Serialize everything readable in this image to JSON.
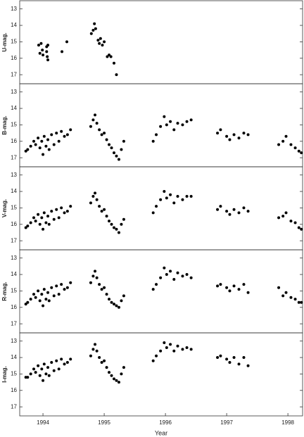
{
  "chart_data": [
    {
      "type": "scatter",
      "ylabel": "U-mag.",
      "marker_color": "#000000",
      "y_inverted": true,
      "x": [
        1993.93,
        1993.95,
        1993.97,
        1993.99,
        1994.0,
        1994.06,
        1994.06,
        1994.07,
        1994.08,
        1994.08,
        1994.31,
        1994.39,
        1994.79,
        1994.82,
        1994.84,
        1994.86,
        1994.9,
        1994.92,
        1994.94,
        1994.97,
        1995.0,
        1995.05,
        1995.08,
        1995.11,
        1995.16,
        1995.2
      ],
      "values": [
        15.2,
        15.7,
        15.1,
        15.5,
        15.8,
        15.3,
        15.6,
        15.9,
        16.1,
        15.2,
        15.6,
        15.0,
        14.5,
        14.3,
        13.9,
        14.2,
        14.9,
        15.1,
        14.8,
        15.2,
        15.0,
        15.9,
        15.8,
        15.9,
        16.3,
        17.0
      ],
      "xlim": [
        1993.62,
        1998.24
      ],
      "ylim": [
        12.5,
        17.55
      ],
      "yticks": [
        13,
        14,
        15,
        16,
        17
      ]
    },
    {
      "type": "scatter",
      "ylabel": "B-mag.",
      "marker_color": "#000000",
      "y_inverted": true,
      "x": [
        1993.72,
        1993.75,
        1993.8,
        1993.85,
        1993.88,
        1993.92,
        1993.95,
        1993.98,
        1994.0,
        1994.02,
        1994.05,
        1994.08,
        1994.1,
        1994.14,
        1994.18,
        1994.22,
        1994.26,
        1994.3,
        1994.35,
        1994.4,
        1994.45,
        1994.78,
        1994.82,
        1994.85,
        1994.88,
        1994.92,
        1994.96,
        1995.0,
        1995.04,
        1995.08,
        1995.12,
        1995.16,
        1995.2,
        1995.24,
        1995.28,
        1995.32,
        1995.8,
        1995.85,
        1995.92,
        1995.98,
        1996.02,
        1996.08,
        1996.14,
        1996.2,
        1996.28,
        1996.35,
        1996.42,
        1996.85,
        1996.9,
        1997.0,
        1997.05,
        1997.12,
        1997.2,
        1997.28,
        1997.35,
        1997.85,
        1997.92,
        1997.97,
        1998.05,
        1998.12,
        1998.18,
        1998.22
      ],
      "values": [
        16.6,
        16.5,
        16.3,
        16.0,
        16.2,
        15.8,
        16.4,
        16.0,
        16.8,
        15.7,
        16.3,
        15.9,
        16.5,
        15.6,
        16.2,
        15.5,
        16.0,
        15.4,
        15.7,
        15.6,
        15.3,
        15.1,
        14.7,
        14.4,
        14.9,
        15.3,
        15.6,
        15.5,
        15.9,
        16.2,
        16.4,
        16.7,
        16.9,
        17.1,
        16.5,
        16.0,
        16.0,
        15.6,
        15.1,
        14.5,
        15.0,
        14.8,
        15.3,
        14.9,
        15.0,
        14.8,
        14.7,
        15.5,
        15.3,
        15.7,
        15.9,
        15.6,
        15.8,
        15.5,
        15.6,
        16.2,
        16.0,
        15.7,
        16.2,
        16.4,
        16.6,
        16.7
      ],
      "xlim": [
        1993.62,
        1998.24
      ],
      "ylim": [
        12.5,
        17.55
      ],
      "yticks": [
        13,
        14,
        15,
        16,
        17
      ]
    },
    {
      "type": "scatter",
      "ylabel": "V-mag.",
      "marker_color": "#000000",
      "y_inverted": true,
      "x": [
        1993.72,
        1993.75,
        1993.8,
        1993.85,
        1993.88,
        1993.92,
        1993.95,
        1993.98,
        1994.0,
        1994.02,
        1994.05,
        1994.08,
        1994.1,
        1994.14,
        1994.18,
        1994.22,
        1994.26,
        1994.3,
        1994.35,
        1994.4,
        1994.45,
        1994.78,
        1994.82,
        1994.85,
        1994.88,
        1994.92,
        1994.96,
        1995.0,
        1995.04,
        1995.08,
        1995.12,
        1995.16,
        1995.2,
        1995.24,
        1995.28,
        1995.32,
        1995.8,
        1995.85,
        1995.92,
        1995.98,
        1996.02,
        1996.08,
        1996.14,
        1996.2,
        1996.28,
        1996.35,
        1996.42,
        1996.85,
        1996.9,
        1997.0,
        1997.05,
        1997.12,
        1997.2,
        1997.28,
        1997.35,
        1997.85,
        1997.92,
        1997.97,
        1998.05,
        1998.12,
        1998.18,
        1998.22
      ],
      "values": [
        16.2,
        16.1,
        15.9,
        15.6,
        15.8,
        15.4,
        16.0,
        15.6,
        16.3,
        15.3,
        15.9,
        15.5,
        16.0,
        15.2,
        15.7,
        15.1,
        15.6,
        15.0,
        15.3,
        15.2,
        14.9,
        14.7,
        14.3,
        14.1,
        14.5,
        14.9,
        15.2,
        15.1,
        15.5,
        15.8,
        16.0,
        16.2,
        16.3,
        16.5,
        16.0,
        15.7,
        15.3,
        14.9,
        14.5,
        14.0,
        14.4,
        14.2,
        14.7,
        14.3,
        14.5,
        14.3,
        14.3,
        15.1,
        14.9,
        15.2,
        15.4,
        15.1,
        15.3,
        15.0,
        15.2,
        15.6,
        15.5,
        15.3,
        15.8,
        15.9,
        16.2,
        16.3
      ],
      "xlim": [
        1993.62,
        1998.24
      ],
      "ylim": [
        12.5,
        17.55
      ],
      "yticks": [
        13,
        14,
        15,
        16,
        17
      ]
    },
    {
      "type": "scatter",
      "ylabel": "R-mag.",
      "marker_color": "#000000",
      "y_inverted": true,
      "x": [
        1993.72,
        1993.75,
        1993.8,
        1993.85,
        1993.88,
        1993.92,
        1993.95,
        1993.98,
        1994.0,
        1994.02,
        1994.05,
        1994.08,
        1994.1,
        1994.14,
        1994.18,
        1994.22,
        1994.26,
        1994.3,
        1994.35,
        1994.4,
        1994.45,
        1994.78,
        1994.82,
        1994.85,
        1994.88,
        1994.92,
        1994.96,
        1995.0,
        1995.04,
        1995.08,
        1995.12,
        1995.16,
        1995.2,
        1995.24,
        1995.28,
        1995.32,
        1995.8,
        1995.85,
        1995.92,
        1995.98,
        1996.02,
        1996.08,
        1996.14,
        1996.2,
        1996.28,
        1996.35,
        1996.42,
        1996.85,
        1996.9,
        1997.0,
        1997.05,
        1997.12,
        1997.2,
        1997.28,
        1997.35,
        1997.85,
        1997.92,
        1997.97,
        1998.05,
        1998.12,
        1998.18,
        1998.22
      ],
      "values": [
        15.8,
        15.7,
        15.5,
        15.2,
        15.4,
        15.0,
        15.6,
        15.2,
        15.9,
        14.9,
        15.5,
        15.1,
        15.6,
        14.8,
        15.3,
        14.7,
        15.2,
        14.6,
        14.9,
        14.8,
        14.5,
        14.5,
        14.1,
        13.8,
        14.2,
        14.6,
        14.9,
        14.8,
        15.2,
        15.5,
        15.7,
        15.8,
        15.9,
        16.0,
        15.6,
        15.3,
        14.9,
        14.6,
        14.2,
        13.6,
        14.0,
        13.8,
        14.3,
        13.9,
        14.1,
        14.0,
        14.2,
        14.7,
        14.6,
        14.8,
        15.0,
        14.7,
        14.9,
        14.6,
        15.1,
        14.8,
        15.3,
        15.1,
        15.4,
        15.5,
        15.7,
        15.7
      ],
      "xlim": [
        1993.62,
        1998.24
      ],
      "ylim": [
        12.5,
        17.55
      ],
      "yticks": [
        13,
        14,
        15,
        16,
        17
      ]
    },
    {
      "type": "scatter",
      "ylabel": "I-mag.",
      "xlabel": "Year",
      "marker_color": "#000000",
      "y_inverted": true,
      "x": [
        1993.72,
        1993.75,
        1993.8,
        1993.85,
        1993.88,
        1993.92,
        1993.95,
        1993.98,
        1994.0,
        1994.02,
        1994.05,
        1994.08,
        1994.1,
        1994.14,
        1994.18,
        1994.22,
        1994.26,
        1994.3,
        1994.35,
        1994.4,
        1994.45,
        1994.78,
        1994.82,
        1994.85,
        1994.88,
        1994.92,
        1994.96,
        1995.0,
        1995.04,
        1995.08,
        1995.12,
        1995.16,
        1995.2,
        1995.24,
        1995.28,
        1995.32,
        1995.8,
        1995.85,
        1995.92,
        1995.98,
        1996.02,
        1996.08,
        1996.14,
        1996.2,
        1996.28,
        1996.35,
        1996.42,
        1996.85,
        1996.9,
        1997.0,
        1997.05,
        1997.12,
        1997.2,
        1997.28,
        1997.35
      ],
      "values": [
        15.2,
        15.2,
        15.0,
        14.7,
        14.9,
        14.5,
        15.1,
        14.7,
        15.4,
        14.4,
        15.0,
        14.6,
        15.1,
        14.3,
        14.8,
        14.2,
        14.7,
        14.1,
        14.4,
        14.3,
        14.1,
        13.9,
        13.5,
        13.2,
        13.6,
        14.0,
        14.3,
        14.2,
        14.6,
        14.9,
        15.1,
        15.3,
        15.4,
        15.5,
        15.0,
        14.6,
        14.2,
        13.9,
        13.6,
        13.1,
        13.4,
        13.2,
        13.6,
        13.3,
        13.5,
        13.4,
        13.5,
        14.0,
        13.9,
        14.1,
        14.3,
        14.0,
        14.4,
        14.0,
        14.5
      ],
      "xlim": [
        1993.62,
        1998.24
      ],
      "ylim": [
        12.5,
        17.55
      ],
      "yticks": [
        13,
        14,
        15,
        16,
        17
      ],
      "xticks": [
        1994,
        1995,
        1996,
        1997,
        1998
      ]
    }
  ]
}
